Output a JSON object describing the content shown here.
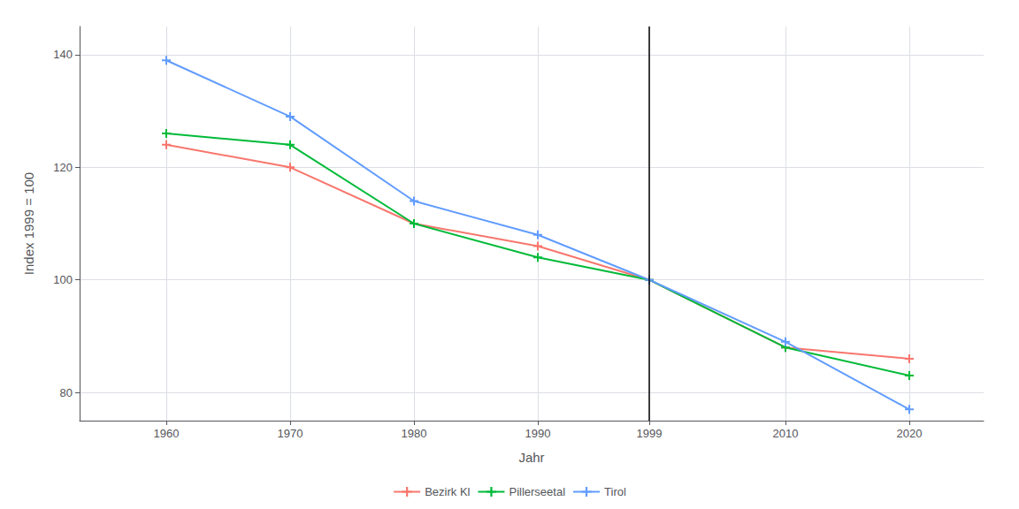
{
  "chart_data": {
    "type": "line",
    "x": [
      1960,
      1970,
      1980,
      1990,
      1999,
      2010,
      2020
    ],
    "series": [
      {
        "name": "Bezirk Kl",
        "color": "#F8766D",
        "marker": "plus",
        "values": [
          124,
          120,
          110,
          106,
          100,
          88,
          86
        ]
      },
      {
        "name": "Pillerseetal",
        "color": "#00BA38",
        "marker": "plus",
        "values": [
          126,
          124,
          110,
          104,
          100,
          88,
          83
        ]
      },
      {
        "name": "Tirol",
        "color": "#619CFF",
        "marker": "plus",
        "values": [
          139,
          129,
          114,
          108,
          100,
          89,
          77
        ]
      }
    ],
    "xlabel": "Jahr",
    "ylabel": "Index 1999 = 100",
    "vline_x": 1999,
    "xlim": [
      1953,
      2026
    ],
    "xticks": [
      1960,
      1970,
      1980,
      1990,
      1999,
      2010,
      2020
    ],
    "ylim": [
      75,
      145
    ],
    "yticks": [
      80,
      100,
      120,
      140
    ],
    "grid": true,
    "legend": "bottom"
  }
}
